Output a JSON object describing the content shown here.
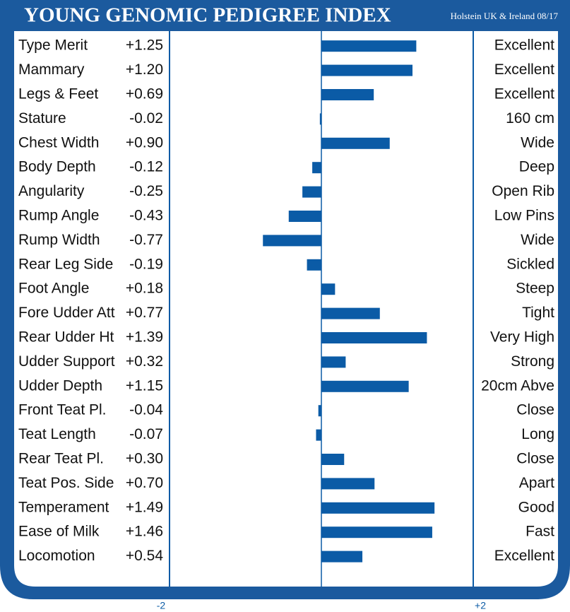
{
  "chart_data": {
    "type": "bar",
    "orientation": "horizontal",
    "title": "YOUNG GENOMIC PEDIGREE INDEX",
    "subtitle": "Holstein UK & Ireland 08/17",
    "categories": [
      "Type Merit",
      "Mammary",
      "Legs & Feet",
      "Stature",
      "Chest Width",
      "Body Depth",
      "Angularity",
      "Rump Angle",
      "Rump Width",
      "Rear Leg Side",
      "Foot Angle",
      "Fore Udder Att",
      "Rear Udder Ht",
      "Udder Support",
      "Udder Depth",
      "Front Teat Pl.",
      "Teat Length",
      "Rear Teat Pl.",
      "Teat Pos. Side",
      "Temperament",
      "Ease of Milk",
      "Locomotion"
    ],
    "values": [
      1.25,
      1.2,
      0.69,
      -0.02,
      0.9,
      -0.12,
      -0.25,
      -0.43,
      -0.77,
      -0.19,
      0.18,
      0.77,
      1.39,
      0.32,
      1.15,
      -0.04,
      -0.07,
      0.3,
      0.7,
      1.49,
      1.46,
      0.54
    ],
    "value_labels": [
      "+1.25",
      "+1.20",
      "+0.69",
      "-0.02",
      "+0.90",
      "-0.12",
      "-0.25",
      "-0.43",
      "-0.77",
      "-0.19",
      "+0.18",
      "+0.77",
      "+1.39",
      "+0.32",
      "+1.15",
      "-0.04",
      "-0.07",
      "+0.30",
      "+0.70",
      "+1.49",
      "+1.46",
      "+0.54"
    ],
    "descriptors": [
      "Excellent",
      "Excellent",
      "Excellent",
      "160 cm",
      "Wide",
      "Deep",
      "Open Rib",
      "Low Pins",
      "Wide",
      "Sickled",
      "Steep",
      "Tight",
      "Very High",
      "Strong",
      "20cm Abve",
      "Close",
      "Long",
      "Close",
      "Apart",
      "Good",
      "Fast",
      "Excellent"
    ],
    "xlim": [
      -2,
      2
    ],
    "xticks": [
      -2,
      {
        "value": 2,
        "label": "+2"
      }
    ],
    "color": "#0b5ba6"
  }
}
